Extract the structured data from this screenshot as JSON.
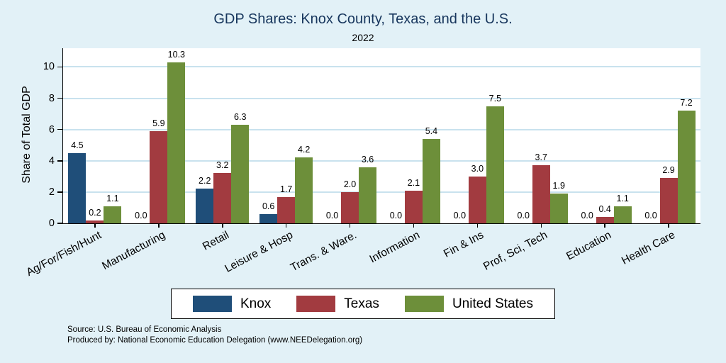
{
  "chart_data": {
    "type": "bar",
    "title": "GDP Shares: Knox County, Texas, and the U.S.",
    "subtitle": "2022",
    "ylabel": "Share of Total GDP",
    "xlabel": "",
    "ylim": [
      0,
      11.2
    ],
    "yticks": [
      0,
      2,
      4,
      6,
      8,
      10
    ],
    "grid": true,
    "legend_position": "bottom",
    "categories": [
      "Ag/For/Fish/Hunt",
      "Manufacturing",
      "Retail",
      "Leisure & Hosp",
      "Trans. & Ware.",
      "Information",
      "Fin & Ins",
      "Prof, Sci, Tech",
      "Education",
      "Health Care"
    ],
    "series": [
      {
        "name": "Knox",
        "color": "#1f4e79",
        "values": [
          4.5,
          0.0,
          2.2,
          0.6,
          0.0,
          0.0,
          0.0,
          0.0,
          0.0,
          0.0
        ]
      },
      {
        "name": "Texas",
        "color": "#a23b40",
        "values": [
          0.2,
          5.9,
          3.2,
          1.7,
          2.0,
          2.1,
          3.0,
          3.7,
          0.4,
          2.9
        ]
      },
      {
        "name": "United States",
        "color": "#6d8f3a",
        "values": [
          1.1,
          10.3,
          6.3,
          4.2,
          3.6,
          5.4,
          7.5,
          1.9,
          1.1,
          7.2
        ]
      }
    ],
    "value_label_decimals": 1
  },
  "notes": {
    "source": "Source: U.S. Bureau of Economic Analysis",
    "produced": "Produced by: National Economic Education Delegation (www.NEEDelegation.org)"
  },
  "colors": {
    "background": "#e2f1f7",
    "plot_background": "#ffffff",
    "grid": "#c9e2ee",
    "title_text": "#17365d",
    "axis": "#000000"
  }
}
